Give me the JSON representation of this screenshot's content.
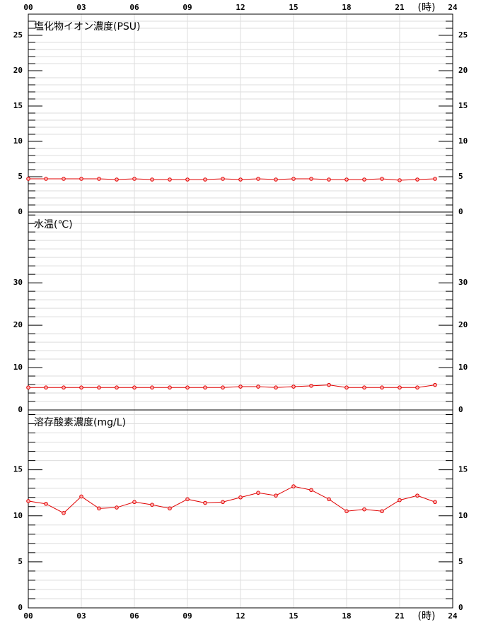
{
  "chart_data": [
    {
      "type": "line",
      "title": "塩化物イオン濃度(PSU)",
      "x_label": "(時)",
      "x": [
        0,
        1,
        2,
        3,
        4,
        5,
        6,
        7,
        8,
        9,
        10,
        11,
        12,
        13,
        14,
        15,
        16,
        17,
        18,
        19,
        20,
        21,
        22,
        23
      ],
      "xlim": [
        0,
        24
      ],
      "xticks": [
        {
          "value": 0,
          "label": "00"
        },
        {
          "value": 3,
          "label": "03"
        },
        {
          "value": 6,
          "label": "06"
        },
        {
          "value": 9,
          "label": "09"
        },
        12,
        15,
        18,
        21,
        24
      ],
      "ylim": [
        0,
        28
      ],
      "yticks": [
        0,
        5,
        10,
        15,
        20,
        25
      ],
      "minor_yticks": [
        1,
        2,
        3,
        4,
        6,
        7,
        8,
        9,
        11,
        12,
        13,
        14,
        16,
        17,
        18,
        19,
        21,
        22,
        23,
        24,
        26,
        27
      ],
      "grid": true,
      "series": [
        {
          "color": "#e00000",
          "values": [
            4.7,
            4.7,
            4.7,
            4.7,
            4.7,
            4.6,
            4.7,
            4.6,
            4.6,
            4.6,
            4.6,
            4.7,
            4.6,
            4.7,
            4.6,
            4.7,
            4.7,
            4.6,
            4.6,
            4.6,
            4.7,
            4.5,
            4.6,
            4.7
          ]
        }
      ]
    },
    {
      "type": "line",
      "title": "水温(℃)",
      "x": [
        0,
        1,
        2,
        3,
        4,
        5,
        6,
        7,
        8,
        9,
        10,
        11,
        12,
        13,
        14,
        15,
        16,
        17,
        18,
        19,
        20,
        21,
        22,
        23
      ],
      "xlim": [
        0,
        24
      ],
      "xticks": [
        {
          "value": 0,
          "label": "00"
        },
        {
          "value": 3,
          "label": "03"
        },
        {
          "value": 6,
          "label": "06"
        },
        {
          "value": 9,
          "label": "09"
        },
        12,
        15,
        18,
        21,
        24
      ],
      "ylim": [
        0,
        46.7
      ],
      "yticks": [
        0,
        10,
        20,
        30
      ],
      "minor_yticks": [
        2,
        4,
        6,
        8,
        12,
        14,
        16,
        18,
        22,
        24,
        26,
        28,
        32,
        34,
        36,
        38,
        40,
        42,
        44,
        46
      ],
      "grid": true,
      "series": [
        {
          "color": "#e00000",
          "values": [
            5.3,
            5.3,
            5.3,
            5.3,
            5.3,
            5.3,
            5.3,
            5.3,
            5.3,
            5.3,
            5.3,
            5.3,
            5.5,
            5.5,
            5.3,
            5.5,
            5.7,
            5.9,
            5.3,
            5.3,
            5.3,
            5.3,
            5.3,
            5.9
          ]
        }
      ]
    },
    {
      "type": "line",
      "title": "溶存酸素濃度(mg/L)",
      "x_label": "(時)",
      "x": [
        0,
        1,
        2,
        3,
        4,
        5,
        6,
        7,
        8,
        9,
        10,
        11,
        12,
        13,
        14,
        15,
        16,
        17,
        18,
        19,
        20,
        21,
        22,
        23
      ],
      "xlim": [
        0,
        24
      ],
      "xticks": [
        {
          "value": 0,
          "label": "00"
        },
        {
          "value": 3,
          "label": "03"
        },
        {
          "value": 6,
          "label": "06"
        },
        {
          "value": 9,
          "label": "09"
        },
        12,
        15,
        18,
        21,
        24
      ],
      "ylim": [
        0,
        21.5
      ],
      "yticks": [
        0,
        5,
        10,
        15
      ],
      "minor_yticks": [
        1,
        2,
        3,
        4,
        6,
        7,
        8,
        9,
        11,
        12,
        13,
        14,
        16,
        17,
        18,
        19,
        20,
        21
      ],
      "grid": true,
      "series": [
        {
          "color": "#e00000",
          "values": [
            11.6,
            11.3,
            10.3,
            12.1,
            10.8,
            10.9,
            11.5,
            11.2,
            10.8,
            11.8,
            11.4,
            11.5,
            12.0,
            12.5,
            12.2,
            13.2,
            12.8,
            11.8,
            10.5,
            10.7,
            10.5,
            11.7,
            12.2,
            11.5
          ]
        }
      ]
    }
  ]
}
